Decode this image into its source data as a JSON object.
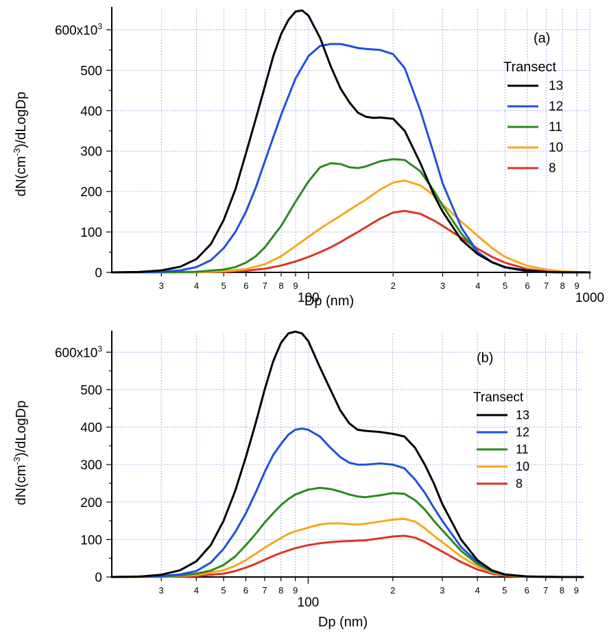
{
  "chart_data": [
    {
      "type": "line",
      "panel_label": "(a)",
      "xlabel": "Dp (nm)",
      "ylabel": "dN(cm-3)/dLogDp",
      "ylabel_parts": [
        "dN(cm",
        "-3",
        ")/dLogDp"
      ],
      "x_scale": "log",
      "xlim": [
        20,
        1000
      ],
      "ylim": [
        0,
        650000
      ],
      "y_ticks": [
        {
          "value": 0,
          "label": "0"
        },
        {
          "value": 100000,
          "label": "100"
        },
        {
          "value": 200000,
          "label": "200"
        },
        {
          "value": 300000,
          "label": "300"
        },
        {
          "value": 400000,
          "label": "400"
        },
        {
          "value": 500000,
          "label": "500"
        },
        {
          "value": 600000,
          "label": "600x10",
          "sup": "3"
        }
      ],
      "x_major_ticks": [
        {
          "value": 100,
          "label": "100"
        },
        {
          "value": 1000,
          "label": "1000"
        }
      ],
      "x_minor_ticks": [
        {
          "value": 30,
          "label": "3"
        },
        {
          "value": 40,
          "label": "4"
        },
        {
          "value": 50,
          "label": "5"
        },
        {
          "value": 60,
          "label": "6"
        },
        {
          "value": 70,
          "label": "7"
        },
        {
          "value": 80,
          "label": "8"
        },
        {
          "value": 90,
          "label": "9"
        },
        {
          "value": 200,
          "label": "2"
        },
        {
          "value": 300,
          "label": "3"
        },
        {
          "value": 400,
          "label": "4"
        },
        {
          "value": 500,
          "label": "5"
        },
        {
          "value": 600,
          "label": "6"
        },
        {
          "value": 700,
          "label": "7"
        },
        {
          "value": 800,
          "label": "8"
        },
        {
          "value": 900,
          "label": "9"
        }
      ],
      "grid": true,
      "legend_title": "Transect",
      "legend_position": "right",
      "series": [
        {
          "name": "13",
          "color": "#000000",
          "x": [
            20,
            25,
            30,
            35,
            40,
            45,
            50,
            55,
            60,
            65,
            70,
            75,
            80,
            85,
            90,
            95,
            100,
            110,
            120,
            130,
            140,
            150,
            160,
            170,
            180,
            200,
            220,
            250,
            280,
            300,
            350,
            400,
            450,
            500,
            600,
            700,
            800,
            1000
          ],
          "y": [
            0,
            1000,
            5000,
            14000,
            33000,
            70000,
            130000,
            205000,
            295000,
            380000,
            460000,
            535000,
            590000,
            625000,
            645000,
            648000,
            635000,
            580000,
            510000,
            455000,
            420000,
            395000,
            385000,
            382000,
            383000,
            380000,
            350000,
            270000,
            190000,
            150000,
            80000,
            45000,
            25000,
            13000,
            4000,
            1000,
            0,
            0
          ]
        },
        {
          "name": "12",
          "color": "#1f4fe0",
          "x": [
            20,
            25,
            30,
            35,
            40,
            45,
            50,
            55,
            60,
            65,
            70,
            80,
            90,
            100,
            110,
            120,
            130,
            140,
            150,
            160,
            180,
            200,
            220,
            250,
            280,
            300,
            350,
            400,
            450,
            500,
            600,
            700,
            800,
            1000
          ],
          "y": [
            0,
            300,
            1500,
            5000,
            13000,
            30000,
            60000,
            100000,
            150000,
            210000,
            275000,
            390000,
            480000,
            535000,
            560000,
            565000,
            565000,
            560000,
            555000,
            553000,
            550000,
            540000,
            505000,
            400000,
            290000,
            220000,
            110000,
            50000,
            25000,
            12000,
            3000,
            800,
            200,
            0
          ]
        },
        {
          "name": "11",
          "color": "#2a8a1e",
          "x": [
            20,
            30,
            40,
            50,
            55,
            60,
            65,
            70,
            80,
            90,
            100,
            110,
            120,
            130,
            140,
            150,
            160,
            180,
            200,
            220,
            250,
            280,
            300,
            350,
            400,
            450,
            500,
            600,
            700,
            800,
            1000
          ],
          "y": [
            0,
            200,
            1500,
            7000,
            13000,
            24000,
            40000,
            62000,
            115000,
            175000,
            225000,
            260000,
            270000,
            268000,
            260000,
            258000,
            262000,
            275000,
            280000,
            278000,
            250000,
            200000,
            165000,
            95000,
            50000,
            25000,
            12000,
            3000,
            800,
            200,
            0
          ]
        },
        {
          "name": "10",
          "color": "#f4a91a",
          "x": [
            20,
            30,
            40,
            50,
            60,
            70,
            80,
            90,
            100,
            110,
            120,
            130,
            140,
            150,
            160,
            180,
            200,
            220,
            250,
            280,
            300,
            350,
            400,
            450,
            500,
            600,
            700,
            800,
            900,
            1000
          ],
          "y": [
            0,
            0,
            500,
            2500,
            8000,
            20000,
            40000,
            65000,
            88000,
            108000,
            125000,
            140000,
            155000,
            168000,
            180000,
            205000,
            222000,
            227000,
            215000,
            190000,
            168000,
            125000,
            90000,
            60000,
            38000,
            16000,
            7000,
            2500,
            800,
            0
          ]
        },
        {
          "name": "8",
          "color": "#e03228",
          "x": [
            20,
            30,
            40,
            50,
            60,
            70,
            80,
            90,
            100,
            110,
            120,
            130,
            140,
            150,
            160,
            180,
            200,
            220,
            250,
            280,
            300,
            350,
            400,
            450,
            500,
            600,
            700,
            800,
            1000
          ],
          "y": [
            0,
            0,
            500,
            1500,
            4000,
            9000,
            17000,
            27000,
            38000,
            50000,
            62000,
            75000,
            88000,
            100000,
            112000,
            133000,
            148000,
            152000,
            145000,
            128000,
            115000,
            85000,
            58000,
            38000,
            24000,
            8000,
            2500,
            800,
            0
          ]
        }
      ]
    },
    {
      "type": "line",
      "panel_label": "(b)",
      "xlabel": "Dp (nm)",
      "ylabel": "dN(cm-3)/dLogDp",
      "ylabel_parts": [
        "dN(cm",
        "-3",
        ")/dLogDp"
      ],
      "x_scale": "log",
      "xlim": [
        20,
        950
      ],
      "ylim": [
        0,
        650000
      ],
      "y_ticks": [
        {
          "value": 0,
          "label": "0"
        },
        {
          "value": 100000,
          "label": "100"
        },
        {
          "value": 200000,
          "label": "200"
        },
        {
          "value": 300000,
          "label": "300"
        },
        {
          "value": 400000,
          "label": "400"
        },
        {
          "value": 500000,
          "label": "500"
        },
        {
          "value": 600000,
          "label": "600x10",
          "sup": "3"
        }
      ],
      "x_major_ticks": [
        {
          "value": 100,
          "label": "100"
        }
      ],
      "x_minor_ticks": [
        {
          "value": 30,
          "label": "3"
        },
        {
          "value": 40,
          "label": "4"
        },
        {
          "value": 50,
          "label": "5"
        },
        {
          "value": 60,
          "label": "6"
        },
        {
          "value": 70,
          "label": "7"
        },
        {
          "value": 80,
          "label": "8"
        },
        {
          "value": 90,
          "label": "9"
        },
        {
          "value": 200,
          "label": "2"
        },
        {
          "value": 300,
          "label": "3"
        },
        {
          "value": 400,
          "label": "4"
        },
        {
          "value": 500,
          "label": "5"
        },
        {
          "value": 600,
          "label": "6"
        },
        {
          "value": 700,
          "label": "7"
        },
        {
          "value": 800,
          "label": "8"
        },
        {
          "value": 900,
          "label": "9"
        }
      ],
      "grid": true,
      "legend_title": "Transect",
      "legend_position": "right",
      "series": [
        {
          "name": "13",
          "color": "#000000",
          "x": [
            20,
            25,
            30,
            35,
            40,
            45,
            50,
            55,
            60,
            65,
            70,
            75,
            80,
            85,
            90,
            95,
            100,
            110,
            120,
            130,
            140,
            150,
            160,
            180,
            200,
            220,
            240,
            260,
            280,
            300,
            350,
            400,
            450,
            500,
            600,
            700,
            800,
            950
          ],
          "y": [
            0,
            1000,
            6000,
            18000,
            42000,
            85000,
            150000,
            230000,
            320000,
            410000,
            500000,
            575000,
            625000,
            650000,
            655000,
            650000,
            630000,
            560000,
            500000,
            445000,
            410000,
            393000,
            390000,
            387000,
            382000,
            375000,
            345000,
            300000,
            250000,
            195000,
            100000,
            45000,
            18000,
            7000,
            1500,
            300,
            0,
            0
          ]
        },
        {
          "name": "12",
          "color": "#1f4fe0",
          "x": [
            20,
            30,
            35,
            40,
            45,
            50,
            55,
            60,
            65,
            70,
            75,
            80,
            85,
            90,
            95,
            100,
            110,
            120,
            130,
            140,
            150,
            160,
            180,
            200,
            220,
            240,
            260,
            280,
            300,
            350,
            400,
            450,
            500,
            600,
            700,
            800,
            950
          ],
          "y": [
            0,
            2500,
            7000,
            16000,
            38000,
            75000,
            120000,
            170000,
            225000,
            280000,
            325000,
            355000,
            380000,
            393000,
            396000,
            393000,
            375000,
            345000,
            320000,
            305000,
            300000,
            300000,
            303000,
            300000,
            290000,
            260000,
            225000,
            185000,
            150000,
            80000,
            40000,
            17000,
            7000,
            1500,
            300,
            0,
            0
          ]
        },
        {
          "name": "11",
          "color": "#2a8a1e",
          "x": [
            20,
            30,
            35,
            40,
            45,
            50,
            55,
            60,
            65,
            70,
            75,
            80,
            85,
            90,
            100,
            110,
            120,
            130,
            140,
            150,
            160,
            180,
            200,
            220,
            240,
            260,
            280,
            300,
            350,
            400,
            450,
            500,
            600,
            700,
            800,
            950
          ],
          "y": [
            0,
            1500,
            4000,
            9000,
            17000,
            32000,
            55000,
            85000,
            115000,
            145000,
            170000,
            192000,
            208000,
            220000,
            233000,
            238000,
            235000,
            228000,
            220000,
            215000,
            213000,
            218000,
            224000,
            222000,
            205000,
            180000,
            150000,
            125000,
            70000,
            35000,
            15000,
            6000,
            1200,
            300,
            0,
            0
          ]
        },
        {
          "name": "10",
          "color": "#f4a91a",
          "x": [
            20,
            30,
            40,
            50,
            55,
            60,
            65,
            70,
            75,
            80,
            85,
            90,
            100,
            110,
            120,
            130,
            140,
            150,
            160,
            180,
            200,
            220,
            240,
            260,
            280,
            300,
            350,
            400,
            450,
            500,
            600,
            700,
            800,
            950
          ],
          "y": [
            0,
            800,
            5000,
            18000,
            30000,
            45000,
            62000,
            78000,
            92000,
            104000,
            115000,
            122000,
            132000,
            140000,
            143000,
            143000,
            141000,
            140000,
            142000,
            148000,
            153000,
            155000,
            148000,
            130000,
            110000,
            93000,
            55000,
            28000,
            12000,
            5000,
            1000,
            200,
            0,
            0
          ]
        },
        {
          "name": "8",
          "color": "#e03228",
          "x": [
            20,
            30,
            40,
            50,
            55,
            60,
            65,
            70,
            75,
            80,
            85,
            90,
            100,
            110,
            120,
            130,
            140,
            150,
            160,
            180,
            200,
            220,
            240,
            260,
            280,
            300,
            350,
            400,
            450,
            500,
            600,
            700,
            800,
            950
          ],
          "y": [
            0,
            300,
            2500,
            9000,
            16000,
            25000,
            35000,
            46000,
            56000,
            64000,
            71000,
            77000,
            85000,
            90000,
            93000,
            95000,
            96000,
            97000,
            98000,
            103000,
            108000,
            110000,
            105000,
            94000,
            80000,
            68000,
            40000,
            20000,
            9000,
            3500,
            800,
            150,
            0,
            0
          ]
        }
      ]
    }
  ]
}
